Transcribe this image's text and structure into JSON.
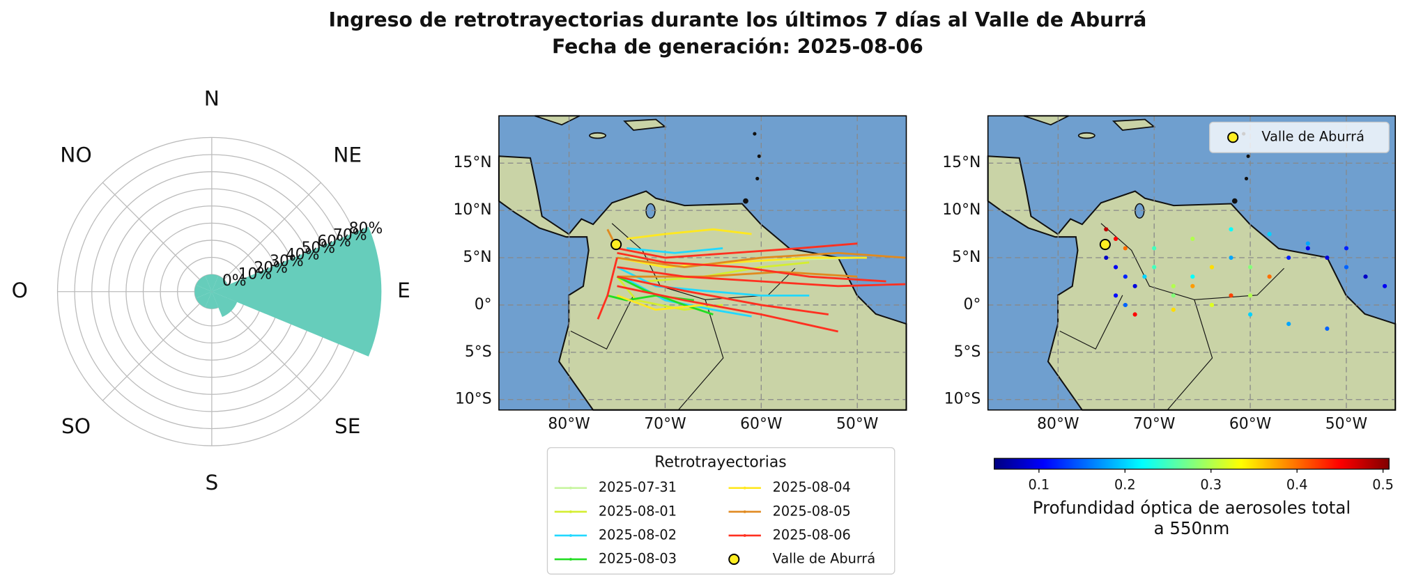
{
  "title": [
    "Ingreso de retrotrayectorias durante los últimos 7 días al Valle de Aburrá",
    "Fecha de generación: 2025-08-06"
  ],
  "chart_data": [
    {
      "type": "polar-bar",
      "directions": [
        "N",
        "NE",
        "E",
        "SE",
        "S",
        "SO",
        "O",
        "NO"
      ],
      "values": [
        0,
        0,
        89,
        6,
        0,
        0,
        0,
        0
      ],
      "color": "#66cdbb",
      "rlim": [
        -10,
        90
      ],
      "rticks": [
        {
          "value": 0,
          "label": "0%"
        },
        {
          "value": 10,
          "label": "10%"
        },
        {
          "value": 20,
          "label": "20%"
        },
        {
          "value": 30,
          "label": "30%"
        },
        {
          "value": 40,
          "label": "40%"
        },
        {
          "value": 50,
          "label": "50%"
        },
        {
          "value": 60,
          "label": "60%"
        },
        {
          "value": 70,
          "label": "70%"
        },
        {
          "value": 80,
          "label": "80%"
        }
      ],
      "grid": true
    },
    {
      "type": "trajectory-map",
      "xlim": [
        -87.3,
        -44.9
      ],
      "ylim": [
        -11.1,
        20
      ],
      "xticks": [
        {
          "value": -80,
          "label": "80°W"
        },
        {
          "value": -70,
          "label": "70°W"
        },
        {
          "value": -60,
          "label": "60°W"
        },
        {
          "value": -50,
          "label": "50°W"
        }
      ],
      "yticks": [
        {
          "value": 15,
          "label": "15°N"
        },
        {
          "value": 10,
          "label": "10°N"
        },
        {
          "value": 5,
          "label": "5°N"
        },
        {
          "value": 0,
          "label": "0°"
        },
        {
          "value": -5,
          "label": "5°S"
        },
        {
          "value": -10,
          "label": "10°S"
        }
      ],
      "grid": true,
      "legend_title": "Retrotrayectorias",
      "series": [
        {
          "name": "2025-07-31",
          "color": "#c8f5a0",
          "lines": [
            {
              "lon": [
                -75,
                -70,
                -63,
                -57,
                -50
              ],
              "lat": [
                5.5,
                4.0,
                4.5,
                4.8,
                5.0
              ]
            }
          ]
        },
        {
          "name": "2025-08-01",
          "color": "#d4ee30",
          "lines": [
            {
              "lon": [
                -75,
                -72,
                -66,
                -60,
                -55
              ],
              "lat": [
                4,
                2.5,
                3,
                4,
                4.5
              ]
            },
            {
              "lon": [
                -75,
                -73,
                -68,
                -64
              ],
              "lat": [
                3,
                0.5,
                -0.5,
                0
              ]
            }
          ]
        },
        {
          "name": "2025-08-02",
          "color": "#22d8ff",
          "lines": [
            {
              "lon": [
                -75,
                -71,
                -66,
                -60,
                -55
              ],
              "lat": [
                4,
                2,
                1.5,
                1,
                1
              ]
            },
            {
              "lon": [
                -74.5,
                -70,
                -65,
                -61
              ],
              "lat": [
                3,
                0.5,
                -0.5,
                -1.2
              ]
            },
            {
              "lon": [
                -74,
                -69,
                -64
              ],
              "lat": [
                6,
                5.5,
                6
              ]
            }
          ]
        },
        {
          "name": "2025-08-03",
          "color": "#22dd22",
          "lines": [
            {
              "lon": [
                -75,
                -72,
                -68,
                -65
              ],
              "lat": [
                3,
                1.5,
                0,
                -1
              ]
            },
            {
              "lon": [
                -76,
                -74,
                -71,
                -67
              ],
              "lat": [
                1,
                0.5,
                1,
                0.5
              ]
            }
          ]
        },
        {
          "name": "2025-08-04",
          "color": "#ffe820",
          "lines": [
            {
              "lon": [
                -74,
                -70,
                -65,
                -61
              ],
              "lat": [
                7,
                7.5,
                8,
                7.5
              ]
            },
            {
              "lon": [
                -75,
                -70,
                -63,
                -55,
                -49
              ],
              "lat": [
                5,
                4,
                4.5,
                5,
                5
              ]
            },
            {
              "lon": [
                -75,
                -71,
                -66
              ],
              "lat": [
                1,
                -0.5,
                0
              ]
            }
          ]
        },
        {
          "name": "2025-08-05",
          "color": "#e08a20",
          "lines": [
            {
              "lon": [
                -76,
                -75.5,
                -75
              ],
              "lat": [
                8,
                7,
                6
              ]
            },
            {
              "lon": [
                -75,
                -68,
                -60,
                -52,
                -45
              ],
              "lat": [
                5,
                4,
                5,
                5.5,
                5
              ]
            },
            {
              "lon": [
                -75,
                -66,
                -58,
                -50
              ],
              "lat": [
                3,
                3,
                3.5,
                3
              ]
            }
          ]
        },
        {
          "name": "2025-08-06",
          "color": "#ff3020",
          "lines": [
            {
              "lon": [
                -75,
                -70,
                -63,
                -56,
                -50
              ],
              "lat": [
                6,
                5,
                5.5,
                6,
                6.5
              ]
            },
            {
              "lon": [
                -75,
                -68,
                -60,
                -52,
                -45
              ],
              "lat": [
                4,
                3,
                2.5,
                2,
                2.2
              ]
            },
            {
              "lon": [
                -75,
                -68,
                -60,
                -53
              ],
              "lat": [
                3,
                1.5,
                0,
                -1
              ]
            },
            {
              "lon": [
                -75,
                -68,
                -60,
                -52
              ],
              "lat": [
                2,
                0.5,
                -1,
                -2.8
              ]
            },
            {
              "lon": [
                -75,
                -76,
                -77
              ],
              "lat": [
                5,
                1,
                -1.5
              ]
            },
            {
              "lon": [
                -75,
                -70,
                -62,
                -55,
                -47
              ],
              "lat": [
                5.5,
                4.5,
                4,
                3,
                2.5
              ]
            }
          ]
        }
      ],
      "site": {
        "name": "Valle de Aburrá",
        "lon": -75.1,
        "lat": 6.4,
        "color": "#ffee22"
      }
    },
    {
      "type": "aod-map",
      "xlim": [
        -87.3,
        -44.9
      ],
      "ylim": [
        -11.1,
        20
      ],
      "xticks": [
        {
          "value": -80,
          "label": "80°W"
        },
        {
          "value": -70,
          "label": "70°W"
        },
        {
          "value": -60,
          "label": "60°W"
        },
        {
          "value": -50,
          "label": "50°W"
        }
      ],
      "yticks": [
        {
          "value": 15,
          "label": "15°N"
        },
        {
          "value": 10,
          "label": "10°N"
        },
        {
          "value": 5,
          "label": "5°N"
        },
        {
          "value": 0,
          "label": "0°"
        },
        {
          "value": -5,
          "label": "5°S"
        },
        {
          "value": -10,
          "label": "10°S"
        }
      ],
      "grid": true,
      "points": {
        "lon": [
          -75,
          -74,
          -73,
          -72,
          -74,
          -73,
          -71,
          -70,
          -68,
          -66,
          -64,
          -62,
          -60,
          -58,
          -56,
          -54,
          -52,
          -50,
          -48,
          -46,
          -70,
          -66,
          -62,
          -58,
          -54,
          -50,
          -68,
          -64,
          -60,
          -56,
          -52,
          -72,
          -68,
          -64,
          -60,
          -75,
          -74,
          -73,
          -66,
          -62
        ],
        "lat": [
          5,
          4,
          3,
          2,
          1,
          0,
          3,
          4,
          2,
          3,
          4,
          5,
          4,
          3,
          5,
          6,
          5,
          4,
          3,
          2,
          6,
          7,
          8,
          7.5,
          6.5,
          6,
          1,
          0,
          -1,
          -2,
          -2.5,
          -1,
          -0.5,
          0,
          1,
          8,
          7,
          6,
          2,
          1
        ],
        "aod": [
          0.08,
          0.1,
          0.12,
          0.09,
          0.11,
          0.15,
          0.2,
          0.25,
          0.3,
          0.22,
          0.35,
          0.18,
          0.28,
          0.4,
          0.12,
          0.1,
          0.09,
          0.15,
          0.08,
          0.1,
          0.25,
          0.3,
          0.22,
          0.2,
          0.18,
          0.12,
          0.28,
          0.3,
          0.2,
          0.18,
          0.15,
          0.45,
          0.35,
          0.32,
          0.3,
          0.48,
          0.45,
          0.4,
          0.38,
          0.42
        ]
      },
      "colormap": "jet",
      "clim": [
        0.048,
        0.507
      ],
      "cticks": [
        0.1,
        0.2,
        0.3,
        0.4,
        0.5
      ],
      "colorbar_label": [
        "Profundidad óptica de aerosoles total",
        "a 550nm"
      ],
      "legend": "upper right",
      "site": {
        "name": "Valle de Aburrá",
        "lon": -75.1,
        "lat": 6.4,
        "color": "#ffee22"
      }
    }
  ]
}
